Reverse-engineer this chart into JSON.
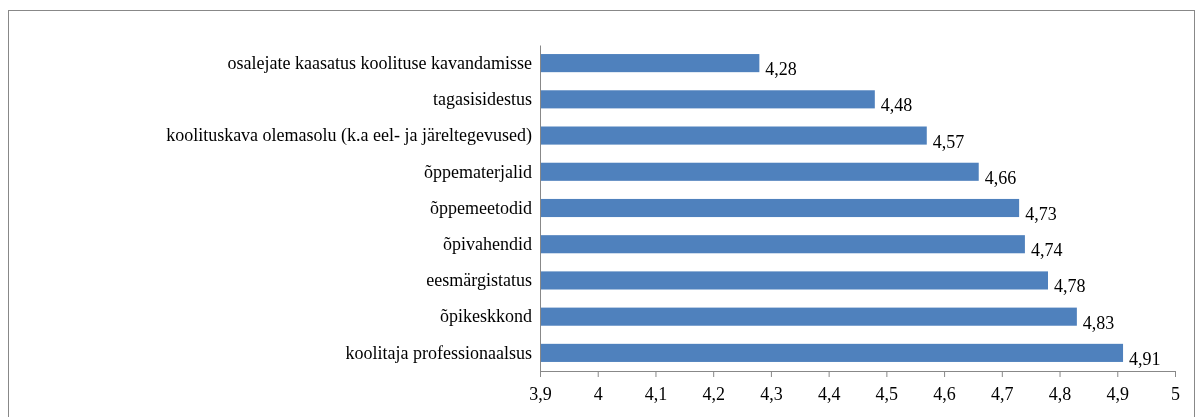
{
  "chart_data": {
    "type": "bar",
    "orientation": "horizontal",
    "categories": [
      "osalejate kaasatus koolituse kavandamisse",
      "tagasisidestus",
      "koolituskava olemasolu (k.a eel- ja järeltegevused)",
      "õppematerjalid",
      "õppemeetodid",
      "õpivahendid",
      "eesmärgistatus",
      "õpikeskkond",
      "koolitaja professionaalsus"
    ],
    "values": [
      4.28,
      4.48,
      4.57,
      4.66,
      4.73,
      4.74,
      4.78,
      4.83,
      4.91
    ],
    "value_labels": [
      "4,28",
      "4,48",
      "4,57",
      "4,66",
      "4,73",
      "4,74",
      "4,78",
      "4,83",
      "4,91"
    ],
    "color": "#4f81bd",
    "xlim": [
      3.9,
      5
    ],
    "xticks": [
      {
        "value": 3.9,
        "label": "3,9"
      },
      4,
      {
        "value": 4.1,
        "label": "4,1"
      },
      {
        "value": 4.2,
        "label": "4,2"
      },
      {
        "value": 4.3,
        "label": "4,3"
      },
      {
        "value": 4.4,
        "label": "4,4"
      },
      {
        "value": 4.5,
        "label": "4,5"
      },
      {
        "value": 4.6,
        "label": "4,6"
      },
      {
        "value": 4.7,
        "label": "4,7"
      },
      {
        "value": 4.8,
        "label": "4,8"
      },
      {
        "value": 4.9,
        "label": "4,9"
      },
      5
    ]
  }
}
